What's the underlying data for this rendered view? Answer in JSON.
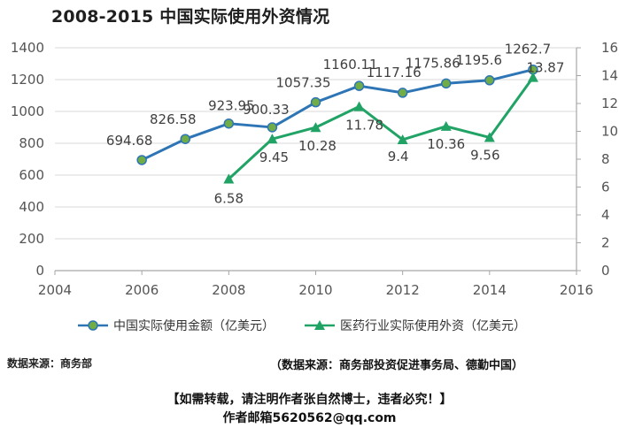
{
  "page_title": "2008-2015 中国实际使用外资情况",
  "chart_data": {
    "type": "line",
    "x": [
      2006,
      2007,
      2008,
      2009,
      2010,
      2011,
      2012,
      2013,
      2014,
      2015
    ],
    "x_ticks": [
      "2004",
      "2006",
      "2008",
      "2010",
      "2012",
      "2014",
      "2016"
    ],
    "xlim": [
      2004,
      2016
    ],
    "y_left_ticks": [
      "0",
      "200",
      "400",
      "600",
      "800",
      "1000",
      "1200",
      "1400"
    ],
    "ylim_left": [
      0,
      1400
    ],
    "y_right_ticks": [
      "0",
      "2",
      "4",
      "6",
      "8",
      "10",
      "12",
      "14",
      "16"
    ],
    "ylim_right": [
      0,
      16
    ],
    "grid": "horizontal",
    "legend_position": "bottom",
    "series": [
      {
        "name": "中国实际使用金额（亿美元）",
        "axis": "left",
        "color": "#2e75b6",
        "marker": "circle",
        "marker_fill": "#70ad47",
        "x": [
          2006,
          2007,
          2008,
          2009,
          2010,
          2011,
          2012,
          2013,
          2014,
          2015
        ],
        "values": [
          694.68,
          826.58,
          923.95,
          900.33,
          1057.35,
          1160.11,
          1117.16,
          1175.86,
          1195.6,
          1262.7
        ],
        "labels": [
          "694.68",
          "826.58",
          "923.95",
          "900.33",
          "1057.35",
          "1160.11",
          "1117.16",
          "1175.86",
          "1195.6",
          "1262.7"
        ]
      },
      {
        "name": "医药行业实际使用外资（亿美元）",
        "axis": "right",
        "color": "#21a366",
        "marker": "triangle",
        "marker_fill": "#21a366",
        "x": [
          2008,
          2009,
          2010,
          2011,
          2012,
          2013,
          2014,
          2015
        ],
        "values": [
          6.58,
          9.45,
          10.28,
          11.78,
          9.4,
          10.36,
          9.56,
          13.87
        ],
        "labels": [
          "6.58",
          "9.45",
          "10.28",
          "11.78",
          "9.4",
          "10.36",
          "9.56",
          "13.87"
        ]
      }
    ]
  },
  "source_left": "数据来源：商务部",
  "source_right": "（数据来源：商务部投资促进事务局、德勤中国）",
  "note_line1": "【如需转载，请注明作者张自然博士，违者必究！】",
  "note_line2": "作者邮箱5620562@qq.com"
}
